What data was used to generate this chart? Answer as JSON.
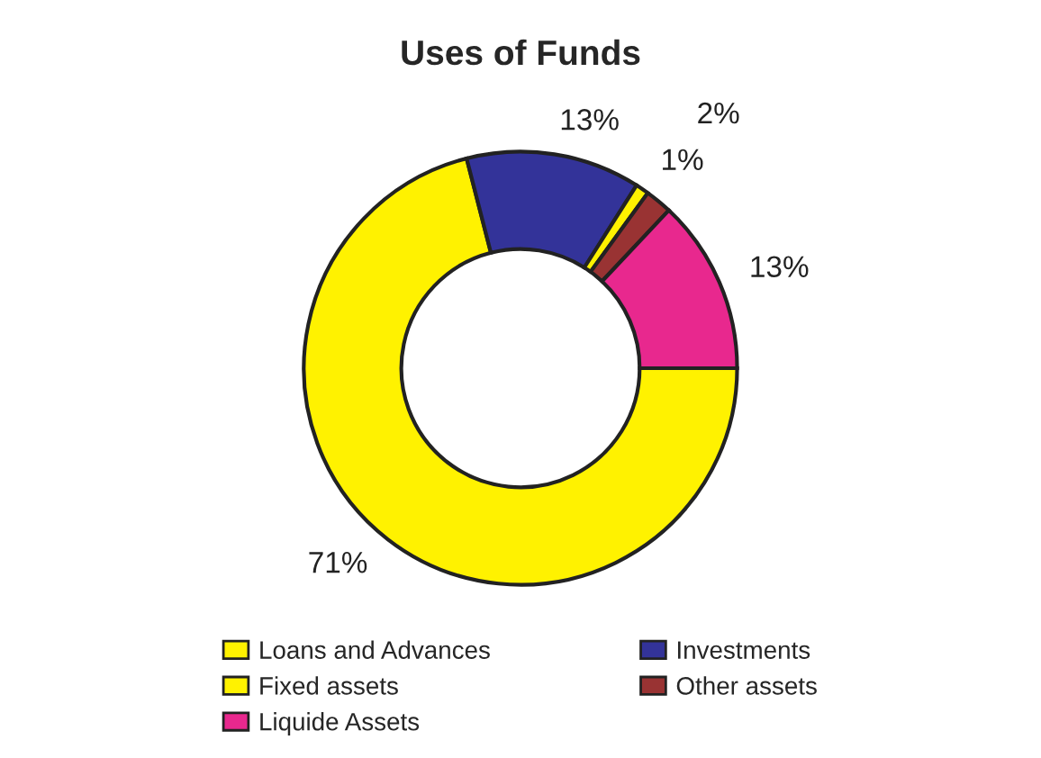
{
  "chart_data": {
    "type": "donut",
    "title": "Uses of Funds",
    "categories": [
      "Loans and Advances",
      "Investments",
      "Fixed assets",
      "Other assets",
      "Liquide Assets"
    ],
    "values": [
      71,
      13,
      1,
      2,
      13
    ],
    "colors": [
      "#fff200",
      "#333399",
      "#fff200",
      "#993333",
      "#e8288e"
    ],
    "value_labels": [
      "71%",
      "13%",
      "1%",
      "2%",
      "13%"
    ],
    "legend": "bottom"
  }
}
